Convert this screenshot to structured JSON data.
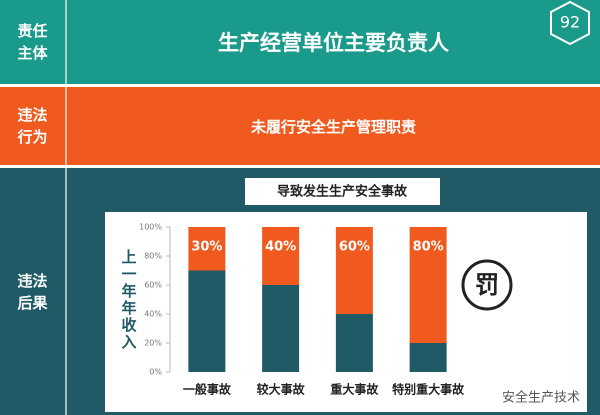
{
  "page_number": "92",
  "rows": [
    {
      "label": "责任主体",
      "text": "生产经营单位主要负责人"
    },
    {
      "label": "违法行为",
      "text": "未履行安全生产管理职责"
    },
    {
      "label": "违法后果",
      "text": "导致发生生产安全事故"
    }
  ],
  "penalty_icon": "罚",
  "watermark": "安全生产技术",
  "chart_data": {
    "type": "stacked_bar",
    "y_label": "上一年年收入",
    "categories": [
      "一般事故",
      "较大事故",
      "重大事故",
      "特别重大事故"
    ],
    "series": [
      {
        "color": "#1f5a66",
        "values": [
          70,
          60,
          40,
          20
        ]
      },
      {
        "color": "#f05a1e",
        "values": [
          30,
          40,
          60,
          80
        ],
        "value_labels": [
          "30%",
          "40%",
          "60%",
          "80%"
        ]
      }
    ],
    "ylim": [
      0,
      100
    ],
    "yticks": [
      {
        "value": 0,
        "label": "0%"
      },
      {
        "value": 20,
        "label": "20%"
      },
      {
        "value": 40,
        "label": "40%"
      },
      {
        "value": 60,
        "label": "60%"
      },
      {
        "value": 80,
        "label": "80%"
      },
      {
        "value": 100,
        "label": "100%"
      }
    ]
  }
}
